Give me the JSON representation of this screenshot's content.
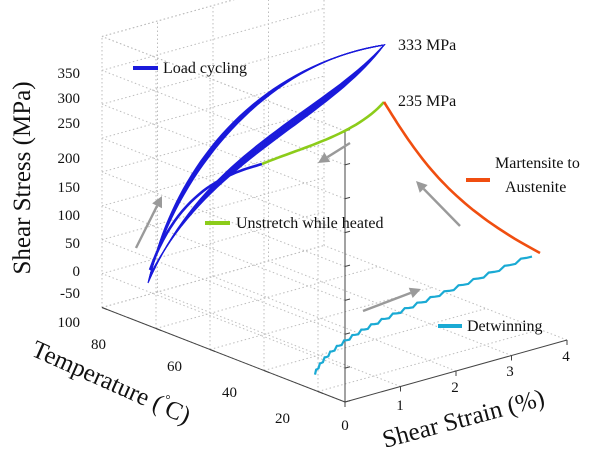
{
  "chart_data": {
    "type": "line",
    "projection": "3d",
    "axes": {
      "x": {
        "label": "Shear Strain (%)",
        "range": [
          0,
          4
        ],
        "ticks": [
          0,
          1,
          2,
          3,
          4
        ]
      },
      "y": {
        "label": "Temperature (°C)",
        "label_text": "Temperature (",
        "label_degree": "°",
        "label_unit": "C)",
        "range": [
          10,
          100
        ],
        "ticks": [
          20,
          40,
          60,
          80,
          100
        ]
      },
      "z": {
        "label": "Shear Stress (MPa)",
        "range": [
          -50,
          350
        ],
        "ticks": [
          -50,
          0,
          50,
          100,
          150,
          200,
          250,
          300,
          350
        ]
      }
    },
    "grid": true,
    "series": [
      {
        "name": "Load cycling",
        "color": "#1a1adb",
        "points_description": "cycled loop between origin-side and 333 MPa peak at high temperature"
      },
      {
        "name": "Unstretch while heated",
        "color": "#8ccc1a",
        "points_description": "from loop bottom region to 235 MPa peak"
      },
      {
        "name": "Martensite to Austenite",
        "name_line1": "Martensite to",
        "name_line2": "Austenite",
        "color": "#f04e10",
        "points_description": "from 235 MPa peak down to end of detwinning"
      },
      {
        "name": "Detwinning",
        "color": "#1aaad4",
        "points_description": "low-temperature strain ramp at near-zero stress"
      }
    ],
    "annotations": [
      {
        "text": "333 MPa"
      },
      {
        "text": "235 MPa"
      }
    ],
    "arrow_color": "#9a9a9a"
  }
}
